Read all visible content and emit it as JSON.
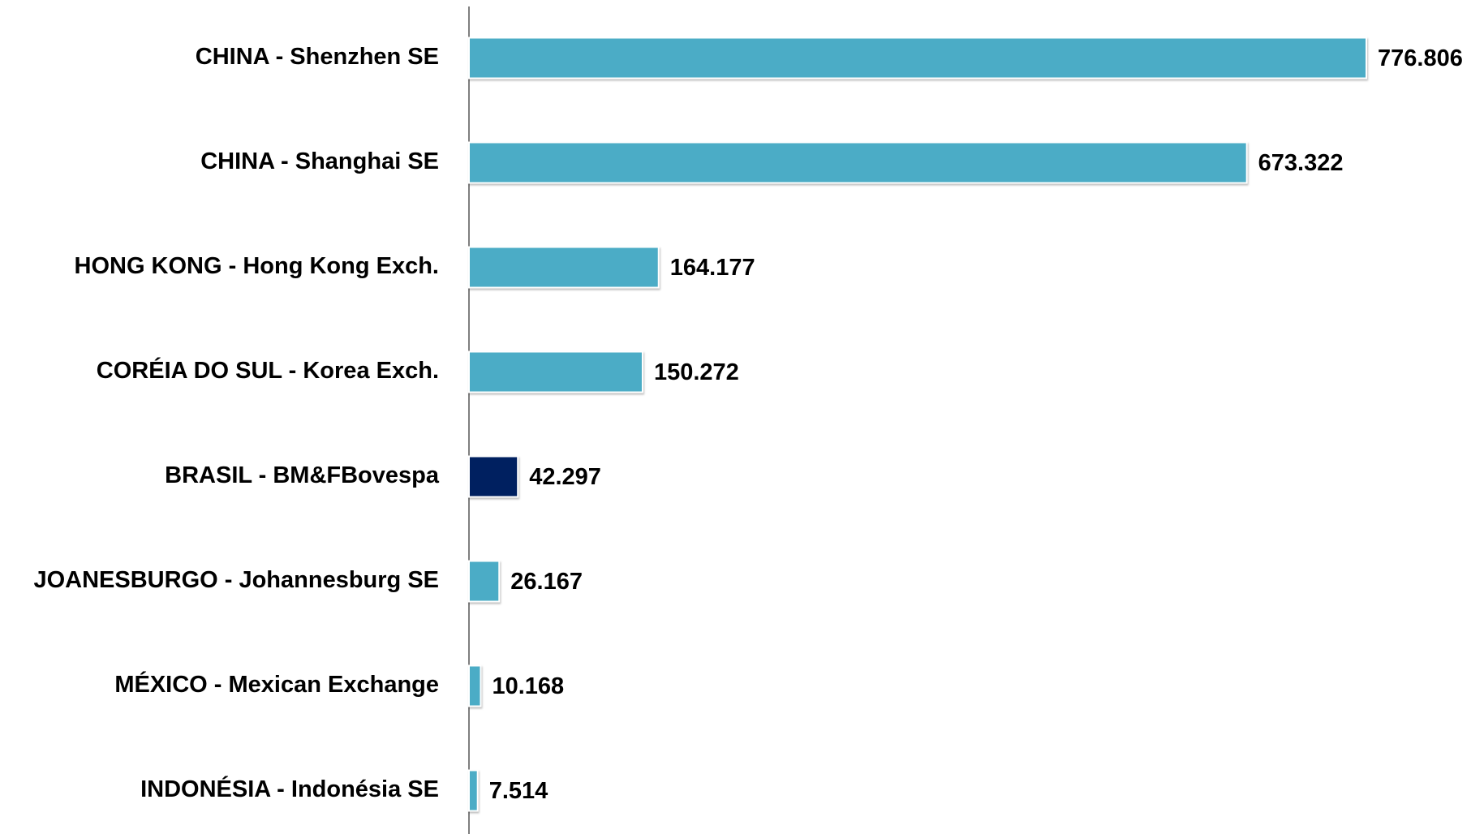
{
  "chart_data": {
    "type": "bar",
    "orientation": "horizontal",
    "categories": [
      "CHINA - Shenzhen SE",
      "CHINA - Shanghai SE",
      "HONG KONG - Hong Kong Exch.",
      "CORÉIA DO SUL - Korea Exch.",
      "BRASIL - BM&FBovespa",
      "JOANESBURGO - Johannesburg SE",
      "MÉXICO - Mexican Exchange",
      "INDONÉSIA - Indonésia SE"
    ],
    "values": [
      776.806,
      673.322,
      164.177,
      150.272,
      42.297,
      26.167,
      10.168,
      7.514
    ],
    "colors": [
      "#4bacc6",
      "#4bacc6",
      "#4bacc6",
      "#4bacc6",
      "#002060",
      "#4bacc6",
      "#4bacc6",
      "#4bacc6"
    ]
  }
}
